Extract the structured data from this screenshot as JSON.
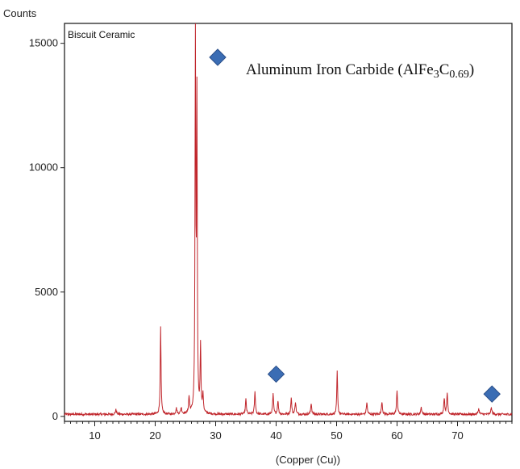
{
  "chart_data": {
    "type": "line",
    "title": "",
    "inset_label": "Biscuit Ceramic",
    "ylabel": "Counts",
    "xlabel": "(Copper (Cu))",
    "xlim": [
      5,
      79
    ],
    "ylim": [
      -200,
      15800
    ],
    "x_ticks": [
      10,
      20,
      30,
      40,
      50,
      60,
      70
    ],
    "y_ticks": [
      0,
      5000,
      10000,
      15000
    ],
    "grid": false,
    "colors": {
      "line": "#c0262c",
      "marker": "#3b6db4",
      "frame": "#222222"
    },
    "legend": {
      "position": "top-right",
      "marker": "diamond",
      "text_main": "Aluminum Iron Carbide (AlFe",
      "text_sub1": "3",
      "text_mid": "C",
      "text_sub2": "0.69",
      "text_end": ")"
    },
    "peaks": [
      {
        "x": 13.5,
        "y": 180,
        "w": 0.14
      },
      {
        "x": 20.9,
        "y": 3500,
        "w": 0.1
      },
      {
        "x": 23.5,
        "y": 230,
        "w": 0.14
      },
      {
        "x": 24.3,
        "y": 250,
        "w": 0.14
      },
      {
        "x": 25.6,
        "y": 650,
        "w": 0.12
      },
      {
        "x": 26.65,
        "y": 15800,
        "w": 0.09
      },
      {
        "x": 26.9,
        "y": 12300,
        "w": 0.09
      },
      {
        "x": 27.5,
        "y": 2700,
        "w": 0.1
      },
      {
        "x": 27.9,
        "y": 700,
        "w": 0.12
      },
      {
        "x": 35.0,
        "y": 600,
        "w": 0.12
      },
      {
        "x": 36.5,
        "y": 900,
        "w": 0.12
      },
      {
        "x": 39.5,
        "y": 800,
        "w": 0.12
      },
      {
        "x": 40.3,
        "y": 550,
        "w": 0.12
      },
      {
        "x": 42.5,
        "y": 650,
        "w": 0.12
      },
      {
        "x": 43.2,
        "y": 500,
        "w": 0.12
      },
      {
        "x": 45.8,
        "y": 450,
        "w": 0.12
      },
      {
        "x": 50.1,
        "y": 1750,
        "w": 0.1
      },
      {
        "x": 55.0,
        "y": 480,
        "w": 0.12
      },
      {
        "x": 57.5,
        "y": 520,
        "w": 0.12
      },
      {
        "x": 60.0,
        "y": 950,
        "w": 0.12
      },
      {
        "x": 64.0,
        "y": 280,
        "w": 0.14
      },
      {
        "x": 67.8,
        "y": 650,
        "w": 0.12
      },
      {
        "x": 68.3,
        "y": 850,
        "w": 0.12
      },
      {
        "x": 73.5,
        "y": 220,
        "w": 0.14
      },
      {
        "x": 75.6,
        "y": 260,
        "w": 0.14
      }
    ],
    "markers": [
      {
        "x": 40.0,
        "y": 1700
      },
      {
        "x": 75.7,
        "y": 900
      }
    ]
  }
}
